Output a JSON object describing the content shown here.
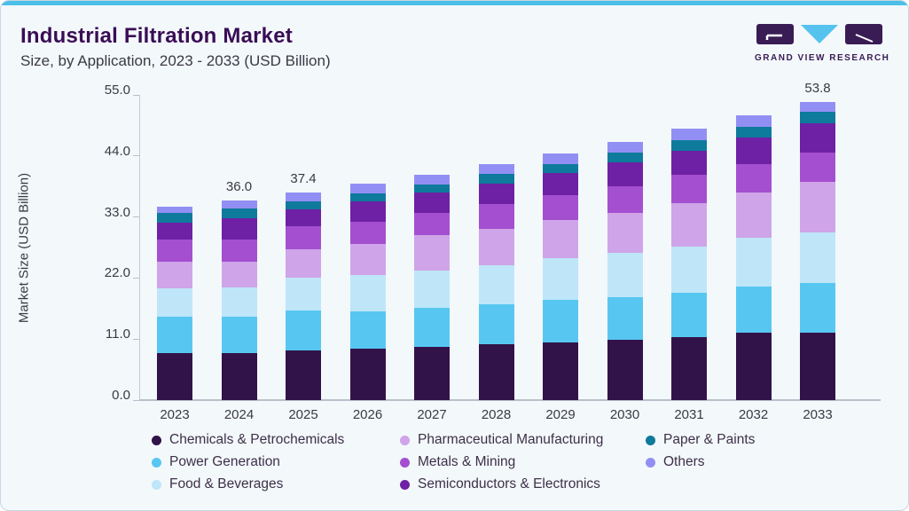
{
  "header": {
    "title": "Industrial Filtration Market",
    "subtitle": "Size, by Application, 2023 - 2033 (USD Billion)"
  },
  "logo": {
    "text": "GRAND VIEW RESEARCH"
  },
  "colors": {
    "accent_top_bar": "#4CBFE9",
    "card_background": "#F3F8FB",
    "card_border": "#C9D6E2",
    "title_text": "#3A0D55",
    "subtitle_text": "#3A3A44",
    "axis_line": "#C4CBD4",
    "tick_text": "#3A3A44",
    "legend_text": "#3D3048",
    "logo_purple": "#3A1C55",
    "logo_cyan": "#55C3EE"
  },
  "chart_data": {
    "type": "bar",
    "stacked": true,
    "title": "Industrial Filtration Market Size, by Application, 2023 - 2033 (USD Billion)",
    "xlabel": "",
    "ylabel": "Market Size (USD Billion)",
    "ylim": [
      0,
      55
    ],
    "yticks": [
      0.0,
      11.0,
      22.0,
      33.0,
      44.0,
      55.0
    ],
    "ytick_labels": [
      "0.0",
      "11.0",
      "22.0",
      "33.0",
      "44.0",
      "55.0"
    ],
    "grid": false,
    "legend_position": "bottom",
    "categories": [
      "2023",
      "2024",
      "2025",
      "2026",
      "2027",
      "2028",
      "2029",
      "2030",
      "2031",
      "2032",
      "2033"
    ],
    "bar_total_labels": [
      "",
      "36.0",
      "37.4",
      "",
      "",
      "",
      "",
      "",
      "",
      "",
      "53.8"
    ],
    "totals": [
      34.8,
      36.0,
      37.4,
      39.0,
      40.7,
      42.5,
      44.5,
      46.6,
      49.0,
      51.3,
      53.8
    ],
    "series": [
      {
        "name": "Chemicals & Petrochemicals",
        "color": "#321349",
        "values": [
          8.5,
          8.5,
          9.0,
          9.3,
          9.6,
          10.1,
          10.4,
          10.8,
          11.4,
          12.1,
          12.1
        ]
      },
      {
        "name": "Power Generation",
        "color": "#57C7F2",
        "values": [
          6.6,
          6.6,
          7.1,
          6.7,
          7.1,
          7.2,
          7.7,
          7.7,
          7.9,
          8.3,
          9.0
        ]
      },
      {
        "name": "Food & Beverages",
        "color": "#BEE6F8",
        "values": [
          5.0,
          5.2,
          6.0,
          6.6,
          6.7,
          7.0,
          7.5,
          8.0,
          8.4,
          8.9,
          9.2
        ]
      },
      {
        "name": "Pharmaceutical Manufacturing",
        "color": "#CFA4E8",
        "values": [
          4.9,
          4.7,
          5.1,
          5.5,
          6.3,
          6.6,
          6.8,
          7.3,
          7.8,
          8.1,
          9.1
        ]
      },
      {
        "name": "Metals & Mining",
        "color": "#A44FD0",
        "values": [
          4.0,
          4.0,
          4.1,
          4.1,
          4.1,
          4.4,
          4.6,
          4.7,
          5.1,
          5.2,
          5.2
        ]
      },
      {
        "name": "Semiconductors & Electronics",
        "color": "#6E21A4",
        "values": [
          3.0,
          3.8,
          3.1,
          3.6,
          3.6,
          3.7,
          3.9,
          4.4,
          4.3,
          4.7,
          5.3
        ]
      },
      {
        "name": "Paper & Paints",
        "color": "#0E7A9C",
        "values": [
          1.7,
          1.7,
          1.5,
          1.5,
          1.5,
          1.7,
          1.7,
          1.7,
          1.9,
          1.9,
          2.0
        ]
      },
      {
        "name": "Others",
        "color": "#928FF4",
        "values": [
          1.1,
          1.5,
          1.5,
          1.7,
          1.8,
          1.8,
          1.9,
          2.0,
          2.2,
          2.1,
          1.9
        ]
      }
    ],
    "legend_columns": [
      [
        0,
        1,
        2
      ],
      [
        3,
        4,
        5
      ],
      [
        6,
        7
      ]
    ]
  }
}
